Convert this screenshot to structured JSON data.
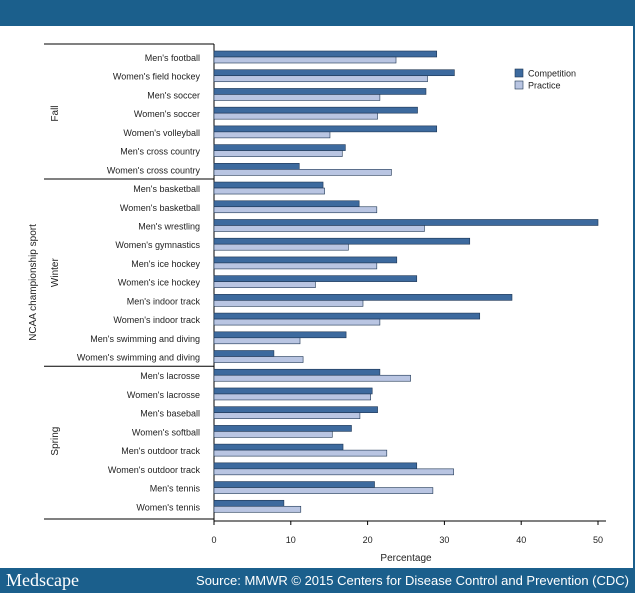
{
  "footer": {
    "logo": "Medscape",
    "source": "Source: MMWR © 2015 Centers for Disease Control and Prevention (CDC)"
  },
  "chart_data": {
    "type": "bar",
    "orientation": "horizontal",
    "title": "",
    "xlabel": "Percentage",
    "ylabel": "NCAA championship sport",
    "xlim": [
      0,
      50
    ],
    "xticks": [
      0,
      10,
      20,
      30,
      40,
      50
    ],
    "legend": {
      "placement": "top-right"
    },
    "colors": {
      "Competition": "#3d6a9e",
      "Practice": "#b9c5e2"
    },
    "groups": [
      {
        "name": "Fall",
        "start": 0,
        "end": 6
      },
      {
        "name": "Winter",
        "start": 7,
        "end": 16
      },
      {
        "name": "Spring",
        "start": 17,
        "end": 24
      }
    ],
    "categories": [
      "Men's football",
      "Women's field hockey",
      "Men's soccer",
      "Women's soccer",
      "Women's volleyball",
      "Men's cross country",
      "Women's cross country",
      "Men's basketball",
      "Women's basketball",
      "Men's wrestling",
      "Women's gymnastics",
      "Men's ice hockey",
      "Women's ice hockey",
      "Men's indoor track",
      "Women's indoor track",
      "Men's swimming and diving",
      "Women's swimming and diving",
      "Men's lacrosse",
      "Women's lacrosse",
      "Men's baseball",
      "Women's softball",
      "Men's outdoor track",
      "Women's outdoor track",
      "Men's tennis",
      "Women's tennis"
    ],
    "series": [
      {
        "name": "Competition",
        "values": [
          29.0,
          31.3,
          27.6,
          26.5,
          29.0,
          17.1,
          11.1,
          14.2,
          18.9,
          50.0,
          33.3,
          23.8,
          26.4,
          38.8,
          34.6,
          17.2,
          7.8,
          21.6,
          20.6,
          21.3,
          17.9,
          16.8,
          26.4,
          20.9,
          9.1
        ]
      },
      {
        "name": "Practice",
        "values": [
          23.7,
          27.8,
          21.6,
          21.3,
          15.1,
          16.7,
          23.1,
          14.4,
          21.2,
          27.4,
          17.5,
          21.2,
          13.2,
          19.4,
          21.6,
          11.2,
          11.6,
          25.6,
          20.4,
          19.0,
          15.4,
          22.5,
          31.2,
          28.5,
          11.3
        ]
      }
    ]
  }
}
